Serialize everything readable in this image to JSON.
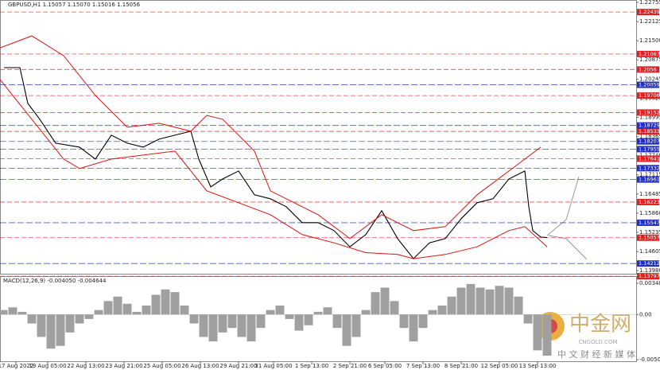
{
  "chart_data": [
    {
      "type": "line",
      "title": "GBPUSD,H1 1.15057 1.15070 1.15016 1.15056",
      "xlim": [
        0,
        200
      ],
      "xticks": [
        {
          "value": 5,
          "label": "17 Aug 2022"
        },
        {
          "value": 15,
          "label": "19 Aug 05:00"
        },
        {
          "value": 27,
          "label": "22 Aug 13:00"
        },
        {
          "value": 39,
          "label": "23 Aug 21:00"
        },
        {
          "value": 51,
          "label": "25 Aug 05:00"
        },
        {
          "value": 63,
          "label": "26 Aug 13:00"
        },
        {
          "value": 75,
          "label": "29 Aug 21:00"
        },
        {
          "value": 86,
          "label": "31 Aug 05:00"
        },
        {
          "value": 98,
          "label": "1 Sep 13:00"
        },
        {
          "value": 110,
          "label": "2 Sep 21:00"
        },
        {
          "value": 121,
          "label": "6 Sep 05:00"
        },
        {
          "value": 133,
          "label": "7 Sep 13:00"
        },
        {
          "value": 145,
          "label": "8 Sep 21:00"
        },
        {
          "value": 157,
          "label": "12 Sep 05:00"
        },
        {
          "value": 169,
          "label": "13 Sep 13:00"
        }
      ],
      "ylim": [
        1.13905,
        1.22755
      ],
      "yticks": [
        1.22755,
        1.22125,
        {
          "value": 1.215,
          "label": "1.21500"
        },
        1.20875,
        1.20245,
        {
          "value": 1.1962,
          "label": "1.19620"
        },
        1.18995,
        1.18365,
        {
          "value": 1.1774,
          "label": "1.17740"
        },
        1.17115,
        1.16485,
        {
          "value": 1.1586,
          "label": "1.15860"
        },
        1.15235,
        1.14605,
        {
          "value": 1.1398,
          "label": "1.13980"
        }
      ],
      "series": [
        {
          "color": "#000000",
          "x": [
            1.25,
            6.25,
            8.75,
            12.5,
            17.5,
            25,
            30,
            35,
            40,
            45,
            50,
            55,
            60,
            62.5,
            66.25,
            70,
            75,
            80,
            85,
            90,
            95,
            100,
            105,
            110,
            115,
            120,
            125,
            130,
            135,
            140,
            145,
            150,
            155,
            160,
            165,
            166.25,
            167.5,
            170,
            172
          ],
          "values": [
            1.2062,
            1.2062,
            1.1945,
            1.1893,
            1.1815,
            1.1802,
            1.1763,
            1.1841,
            1.1815,
            1.1802,
            1.1828,
            1.1841,
            1.1854,
            1.1763,
            1.1672,
            1.1698,
            1.1724,
            1.1646,
            1.1633,
            1.1607,
            1.1555,
            1.1555,
            1.1529,
            1.1476,
            1.1516,
            1.1594,
            1.1503,
            1.1437,
            1.1489,
            1.1503,
            1.1568,
            1.162,
            1.1633,
            1.1698,
            1.1724,
            1.1607,
            1.1529,
            1.1508,
            1.1506
          ]
        },
        {
          "color": "#e01010",
          "x": [
            0,
            10,
            20,
            30,
            40,
            50,
            60,
            65,
            70,
            80,
            85,
            90,
            100,
            110,
            120,
            130,
            140,
            150,
            160,
            170
          ],
          "values": [
            1.2127,
            1.2166,
            1.2101,
            1.1971,
            1.1867,
            1.188,
            1.1854,
            1.1906,
            1.1893,
            1.1789,
            1.1659,
            1.1633,
            1.1581,
            1.1503,
            1.1581,
            1.1529,
            1.1542,
            1.1646,
            1.1724,
            1.1802
          ]
        },
        {
          "color": "#e01010",
          "x": [
            0,
            10,
            20,
            25,
            35,
            45,
            55,
            65,
            75,
            85,
            95,
            105,
            115,
            125,
            130,
            140,
            150,
            160,
            165,
            172
          ],
          "values": [
            1.2023,
            1.1893,
            1.1763,
            1.1732,
            1.1763,
            1.1776,
            1.1789,
            1.1659,
            1.162,
            1.1581,
            1.1516,
            1.1489,
            1.1457,
            1.1451,
            1.1437,
            1.1451,
            1.1476,
            1.1529,
            1.1542,
            1.1476
          ]
        }
      ],
      "resistance_color": "#e02020",
      "support_color": "#2030c0",
      "resistance_levels": [
        1.22439,
        1.21067,
        1.2056,
        1.19706,
        1.19152,
        1.18533,
        1.17641,
        1.16223,
        1.15057,
        1.13797
      ],
      "support_levels": [
        1.20059,
        1.18729,
        1.18207,
        1.17955,
        1.17332,
        1.16961,
        1.15547,
        1.14212
      ]
    },
    {
      "type": "bar",
      "title": "MACD(12,26,9) -0.004050 -0.004644",
      "color": "#a0a0a0",
      "xlim": [
        0,
        200
      ],
      "ylim": [
        -0.005034,
        0.003485
      ],
      "yticks": [
        0.003485,
        {
          "value": 0,
          "label": "0.00"
        },
        -0.005034
      ],
      "x": [
        1,
        4,
        7,
        10,
        13,
        16,
        19,
        22,
        25,
        28,
        31,
        34,
        37,
        40,
        43,
        46,
        49,
        52,
        55,
        58,
        61,
        64,
        67,
        70,
        73,
        76,
        79,
        82,
        85,
        88,
        91,
        94,
        97,
        100,
        103,
        106,
        109,
        112,
        115,
        118,
        121,
        124,
        127,
        130,
        133,
        136,
        139,
        142,
        145,
        148,
        151,
        154,
        157,
        160,
        163,
        166,
        169,
        172
      ],
      "values": [
        0.0005,
        0.0008,
        0.0003,
        -0.001,
        -0.0025,
        -0.0038,
        -0.0035,
        -0.002,
        -0.001,
        -0.0005,
        0.0005,
        0.0015,
        0.002,
        0.0012,
        0.0003,
        0.001,
        0.0022,
        0.0028,
        0.0025,
        0.001,
        -0.001,
        -0.0025,
        -0.003,
        -0.002,
        -0.0015,
        -0.0025,
        -0.003,
        -0.0015,
        0.0005,
        0.001,
        -0.0005,
        -0.0018,
        -0.0012,
        0.0003,
        0.0008,
        -0.0015,
        -0.0035,
        -0.0025,
        0.0005,
        0.0025,
        0.003,
        0.0015,
        -0.0015,
        -0.003,
        -0.0015,
        0.0005,
        0.001,
        0.002,
        0.003,
        0.0034,
        0.003,
        0.0028,
        0.0032,
        0.003,
        0.002,
        -0.001,
        -0.004,
        -0.0046
      ]
    }
  ],
  "watermark": {
    "name": "中金网",
    "site": "CNGOLD.COM",
    "slogan": "中 文 财 经 新 媒 体"
  }
}
